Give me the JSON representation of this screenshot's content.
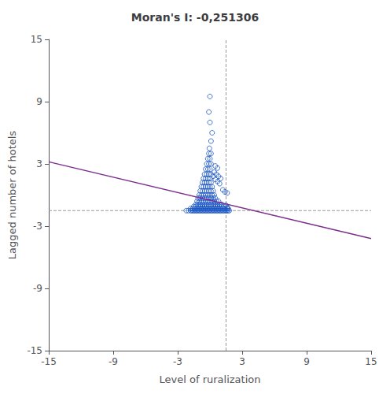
{
  "chart_data": {
    "type": "scatter",
    "title": "Moran's I: -0,251306",
    "xlabel": "Level of ruralization",
    "ylabel": "Lagged number of hotels",
    "xlim": [
      -15,
      15
    ],
    "ylim": [
      -15,
      15
    ],
    "xticks": [
      -15,
      -9,
      -3,
      3,
      9,
      15
    ],
    "yticks": [
      -15,
      -9,
      -3,
      3,
      9,
      15
    ],
    "grid": false,
    "series": [
      {
        "type": "scatter",
        "color": "#1a56c4",
        "marker": "hollow",
        "x": [
          -1.8,
          -1.7,
          -1.6,
          -1.5,
          -1.4,
          -1.3,
          -1.2,
          -1.1,
          -1.0,
          -0.9,
          -0.8,
          -0.7,
          -0.6,
          -0.5,
          -0.4,
          -0.3,
          -0.2,
          -0.1,
          0.0,
          0.1,
          0.2,
          0.3,
          0.4,
          0.5,
          0.6,
          0.7,
          0.8,
          0.9,
          1.0,
          1.1,
          1.2,
          1.3,
          1.4,
          1.5,
          1.6,
          1.7,
          1.8,
          -1.8,
          -1.6,
          -1.4,
          -1.2,
          -1.0,
          -0.8,
          -0.6,
          -0.4,
          -0.2,
          0.0,
          0.2,
          0.4,
          0.6,
          0.8,
          1.0,
          1.2,
          1.4,
          1.6,
          -1.5,
          -1.3,
          -1.1,
          -0.9,
          -0.7,
          -0.5,
          -0.3,
          -0.1,
          0.1,
          0.3,
          0.5,
          0.7,
          0.9,
          1.1,
          1.3,
          -1.3,
          -1.1,
          -0.9,
          -0.7,
          -0.5,
          -0.3,
          -0.1,
          0.1,
          0.3,
          0.5,
          0.7,
          0.9,
          1.1,
          -1.2,
          -1.0,
          -0.8,
          -0.6,
          -0.4,
          -0.2,
          0.0,
          0.2,
          0.4,
          0.6,
          0.8,
          -1.1,
          -0.9,
          -0.7,
          -0.5,
          -0.3,
          -0.1,
          0.1,
          0.3,
          0.5,
          -1.0,
          -0.8,
          -0.6,
          -0.4,
          -0.2,
          0.0,
          0.2,
          0.4,
          -0.9,
          -0.7,
          -0.5,
          -0.3,
          -0.1,
          0.1,
          0.3,
          -0.8,
          -0.6,
          -0.4,
          -0.2,
          0.0,
          0.2,
          -0.7,
          -0.5,
          -0.3,
          -0.1,
          0.1,
          -0.6,
          -0.4,
          -0.2,
          0.0,
          -0.5,
          -0.3,
          -0.1,
          0.1,
          -0.4,
          -0.2,
          0.0,
          -0.3,
          -0.1,
          0.1,
          -0.2,
          0.0,
          -0.1,
          0.1,
          -0.05,
          0.1,
          0.2,
          0.0,
          -0.1,
          0.0,
          0.3,
          0.5,
          0.7,
          0.9,
          0.4,
          0.6,
          0.8,
          1.0,
          0.5,
          0.7,
          1.5,
          1.6,
          1.7,
          -2.0,
          -2.2,
          1.2,
          1.4,
          1.6
        ],
        "values": [
          -1.5,
          -1.5,
          -1.5,
          -1.5,
          -1.5,
          -1.5,
          -1.5,
          -1.5,
          -1.5,
          -1.5,
          -1.5,
          -1.5,
          -1.5,
          -1.5,
          -1.5,
          -1.5,
          -1.5,
          -1.5,
          -1.5,
          -1.5,
          -1.5,
          -1.5,
          -1.5,
          -1.5,
          -1.5,
          -1.5,
          -1.5,
          -1.5,
          -1.5,
          -1.5,
          -1.5,
          -1.5,
          -1.5,
          -1.5,
          -1.5,
          -1.5,
          -1.5,
          -1.3,
          -1.3,
          -1.3,
          -1.3,
          -1.3,
          -1.3,
          -1.3,
          -1.3,
          -1.3,
          -1.3,
          -1.3,
          -1.3,
          -1.3,
          -1.3,
          -1.3,
          -1.3,
          -1.3,
          -1.3,
          -1.1,
          -1.1,
          -1.1,
          -1.1,
          -1.1,
          -1.1,
          -1.1,
          -1.1,
          -1.1,
          -1.1,
          -1.1,
          -1.1,
          -1.1,
          -1.1,
          -1.1,
          -0.9,
          -0.9,
          -0.9,
          -0.9,
          -0.9,
          -0.9,
          -0.9,
          -0.9,
          -0.9,
          -0.9,
          -0.9,
          -0.9,
          -0.9,
          -0.6,
          -0.6,
          -0.6,
          -0.6,
          -0.6,
          -0.6,
          -0.6,
          -0.6,
          -0.6,
          -0.6,
          -0.6,
          -0.3,
          -0.3,
          -0.3,
          -0.3,
          -0.3,
          -0.3,
          -0.3,
          -0.3,
          -0.3,
          0.0,
          0.0,
          0.0,
          0.0,
          0.0,
          0.0,
          0.0,
          0.0,
          0.4,
          0.4,
          0.4,
          0.4,
          0.4,
          0.4,
          0.4,
          0.8,
          0.8,
          0.8,
          0.8,
          0.8,
          0.8,
          1.2,
          1.2,
          1.2,
          1.2,
          1.2,
          1.6,
          1.6,
          1.6,
          1.6,
          2.0,
          2.0,
          2.0,
          2.0,
          2.5,
          2.5,
          2.5,
          3.0,
          3.0,
          3.0,
          3.5,
          3.5,
          4.0,
          4.0,
          4.5,
          5.2,
          6.0,
          7.0,
          8.0,
          9.5,
          1.8,
          1.5,
          1.3,
          1.1,
          2.2,
          2.0,
          1.8,
          1.6,
          2.8,
          2.6,
          -1.0,
          -1.2,
          -1.3,
          -1.5,
          -1.5,
          0.5,
          0.3,
          0.2
        ]
      },
      {
        "type": "line",
        "color": "#7b2d8b",
        "line_style": "solid",
        "x": [
          -15,
          15
        ],
        "values": [
          3.2,
          -4.2
        ]
      },
      {
        "type": "line",
        "color": "#999999",
        "line_style": "dashed",
        "x": [
          -15,
          15
        ],
        "values": [
          -1.5,
          -1.5
        ]
      },
      {
        "type": "line",
        "color": "#999999",
        "line_style": "dashed",
        "x": [
          1.5,
          1.5
        ],
        "values": [
          -15,
          15
        ]
      }
    ]
  }
}
